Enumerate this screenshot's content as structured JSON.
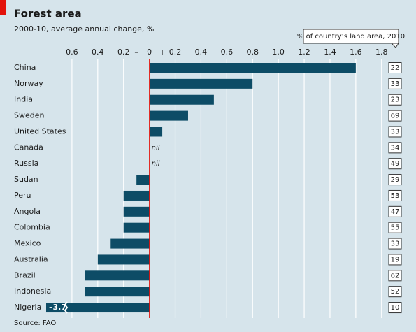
{
  "chart_data": {
    "type": "bar",
    "title": "Forest area",
    "subtitle": "2000-10, average annual change, %",
    "source": "Source: FAO",
    "sign_labels": [
      "–",
      "+"
    ],
    "categories": [
      "China",
      "Norway",
      "India",
      "Sweden",
      "United States",
      "Canada",
      "Russia",
      "Sudan",
      "Peru",
      "Angola",
      "Colombia",
      "Mexico",
      "Australia",
      "Brazil",
      "Indonesia",
      "Nigeria"
    ],
    "values": [
      1.6,
      0.8,
      0.5,
      0.3,
      0.1,
      0,
      0,
      -0.1,
      -0.2,
      -0.2,
      -0.2,
      -0.3,
      -0.4,
      -0.5,
      -0.5,
      -3.7
    ],
    "value_labels": [
      null,
      null,
      null,
      null,
      null,
      "nil",
      "nil",
      null,
      null,
      null,
      null,
      null,
      null,
      null,
      null,
      "–3.7"
    ],
    "color": "#0d4c66",
    "xlim": [
      -0.8,
      1.85
    ],
    "xticks": [
      {
        "value": -0.6,
        "label": "0.6"
      },
      {
        "value": -0.4,
        "label": "0.4"
      },
      {
        "value": -0.2,
        "label": "0.2"
      },
      0,
      0.2,
      0.4,
      0.6,
      0.8,
      {
        "value": 1.0,
        "label": "1.0"
      },
      1.2,
      1.4,
      1.6,
      1.8
    ],
    "grid": true,
    "land_area": {
      "title": "% of country’s land area, 2010",
      "values": [
        22,
        33,
        23,
        69,
        33,
        34,
        49,
        29,
        53,
        47,
        55,
        33,
        19,
        62,
        52,
        10
      ]
    }
  }
}
